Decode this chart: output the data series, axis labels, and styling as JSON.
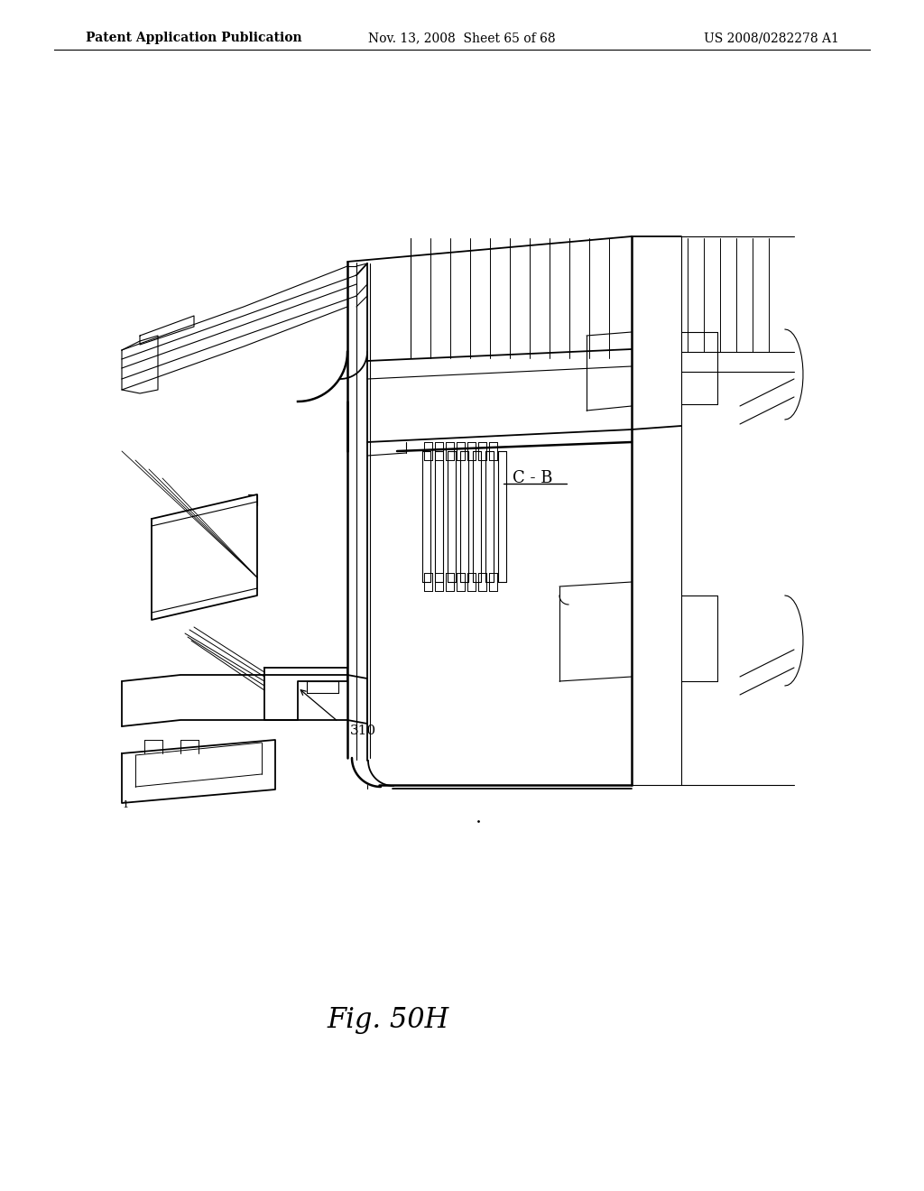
{
  "background_color": "#ffffff",
  "line_color": "#000000",
  "header_left": "Patent Application Publication",
  "header_center": "Nov. 13, 2008  Sheet 65 of 68",
  "header_right": "US 2008/0282278 A1",
  "figure_label": "Fig. 50H",
  "label_310": "310",
  "label_cb": "C - B",
  "header_fontsize": 10,
  "figure_label_fontsize": 22,
  "annotation_fontsize": 11
}
